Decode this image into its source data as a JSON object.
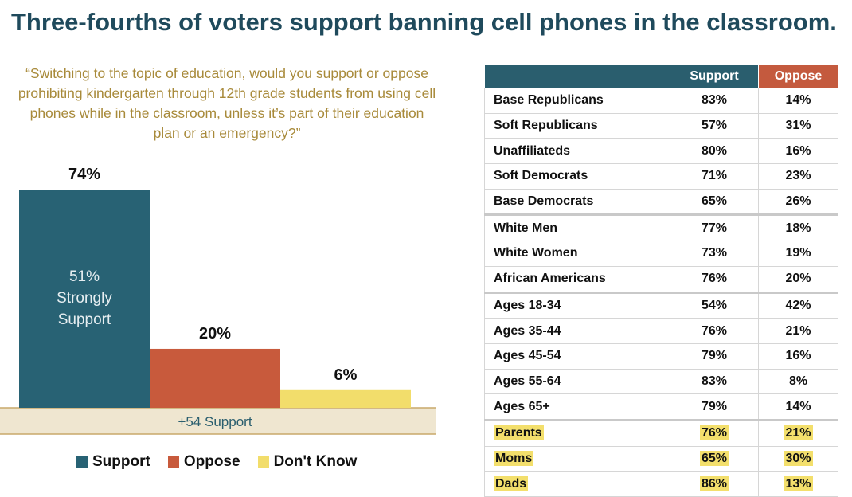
{
  "title": "Three-fourths of voters support banning cell phones in the classroom.",
  "question": "“Switching to the topic of education, would you support or oppose prohibiting kindergarten through 12th grade students from using cell phones while in the classroom, unless it’s part of their education plan or an emergency?”",
  "chart_data": [
    {
      "type": "bar",
      "categories": [
        "Support",
        "Oppose",
        "Don't Know"
      ],
      "values": [
        74,
        20,
        6
      ],
      "value_labels": [
        "74%",
        "20%",
        "6%"
      ],
      "inner_label": [
        "51%",
        "Strongly",
        "Support"
      ],
      "net_label": "+54 Support",
      "ylim": [
        0,
        80
      ],
      "colors": [
        "#286274",
        "#c85a3c",
        "#f2dd6b"
      ],
      "legend": [
        "Support",
        "Oppose",
        "Don't Know"
      ],
      "legend_position": "bottom"
    },
    {
      "type": "table",
      "columns": [
        "",
        "Support",
        "Oppose"
      ],
      "rows": [
        {
          "label": "Base Republicans",
          "support": "83%",
          "oppose": "14%"
        },
        {
          "label": "Soft Republicans",
          "support": "57%",
          "oppose": "31%"
        },
        {
          "label": "Unaffiliateds",
          "support": "80%",
          "oppose": "16%"
        },
        {
          "label": "Soft Democrats",
          "support": "71%",
          "oppose": "23%"
        },
        {
          "label": "Base Democrats",
          "support": "65%",
          "oppose": "26%"
        },
        {
          "label": "White Men",
          "support": "77%",
          "oppose": "18%"
        },
        {
          "label": "White Women",
          "support": "73%",
          "oppose": "19%"
        },
        {
          "label": "African Americans",
          "support": "76%",
          "oppose": "20%"
        },
        {
          "label": "Ages 18-34",
          "support": "54%",
          "oppose": "42%"
        },
        {
          "label": "Ages 35-44",
          "support": "76%",
          "oppose": "21%"
        },
        {
          "label": "Ages 45-54",
          "support": "79%",
          "oppose": "16%"
        },
        {
          "label": "Ages 55-64",
          "support": "83%",
          "oppose": "8%"
        },
        {
          "label": "Ages 65+",
          "support": "79%",
          "oppose": "14%"
        },
        {
          "label": "Parents",
          "support": "76%",
          "oppose": "21%"
        },
        {
          "label": "Moms",
          "support": "65%",
          "oppose": "30%"
        },
        {
          "label": "Dads",
          "support": "86%",
          "oppose": "13%"
        }
      ],
      "group_ends": [
        4,
        7,
        12
      ],
      "highlighted_rows": [
        13,
        14,
        15
      ]
    }
  ]
}
